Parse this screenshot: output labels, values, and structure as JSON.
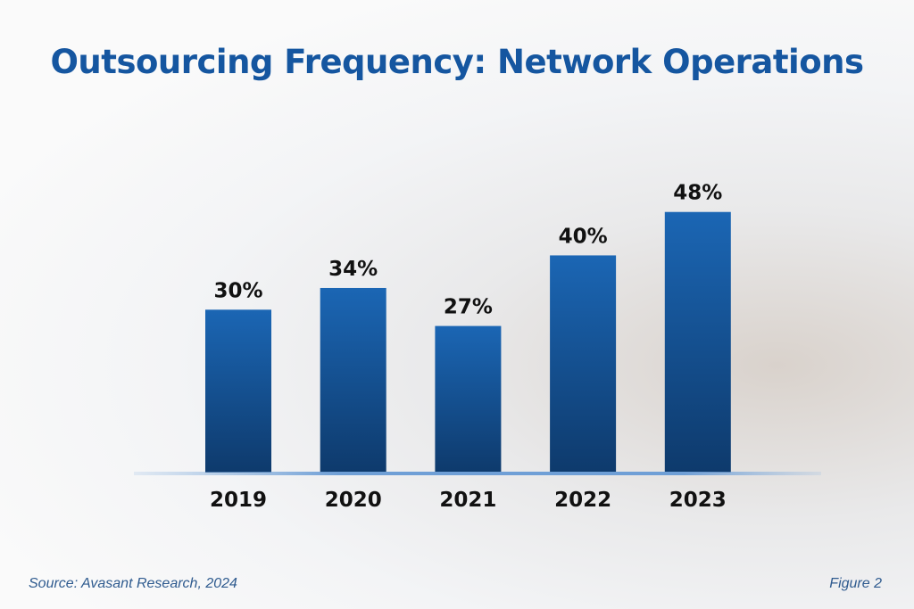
{
  "chart_data": {
    "type": "bar",
    "title": "Outsourcing Frequency: Network Operations",
    "categories": [
      "2019",
      "2020",
      "2021",
      "2022",
      "2023"
    ],
    "values": [
      30,
      34,
      27,
      40,
      48
    ],
    "data_labels": [
      "30%",
      "34%",
      "27%",
      "40%",
      "48%"
    ],
    "ylim": [
      0,
      55
    ],
    "grid": false,
    "bar_color": "#1a5fa8",
    "bar_color_dark": "#0f3d70",
    "title_color": "#1556a0"
  },
  "footer": {
    "source": "Source: Avasant Research, 2024",
    "figure": "Figure 2"
  }
}
